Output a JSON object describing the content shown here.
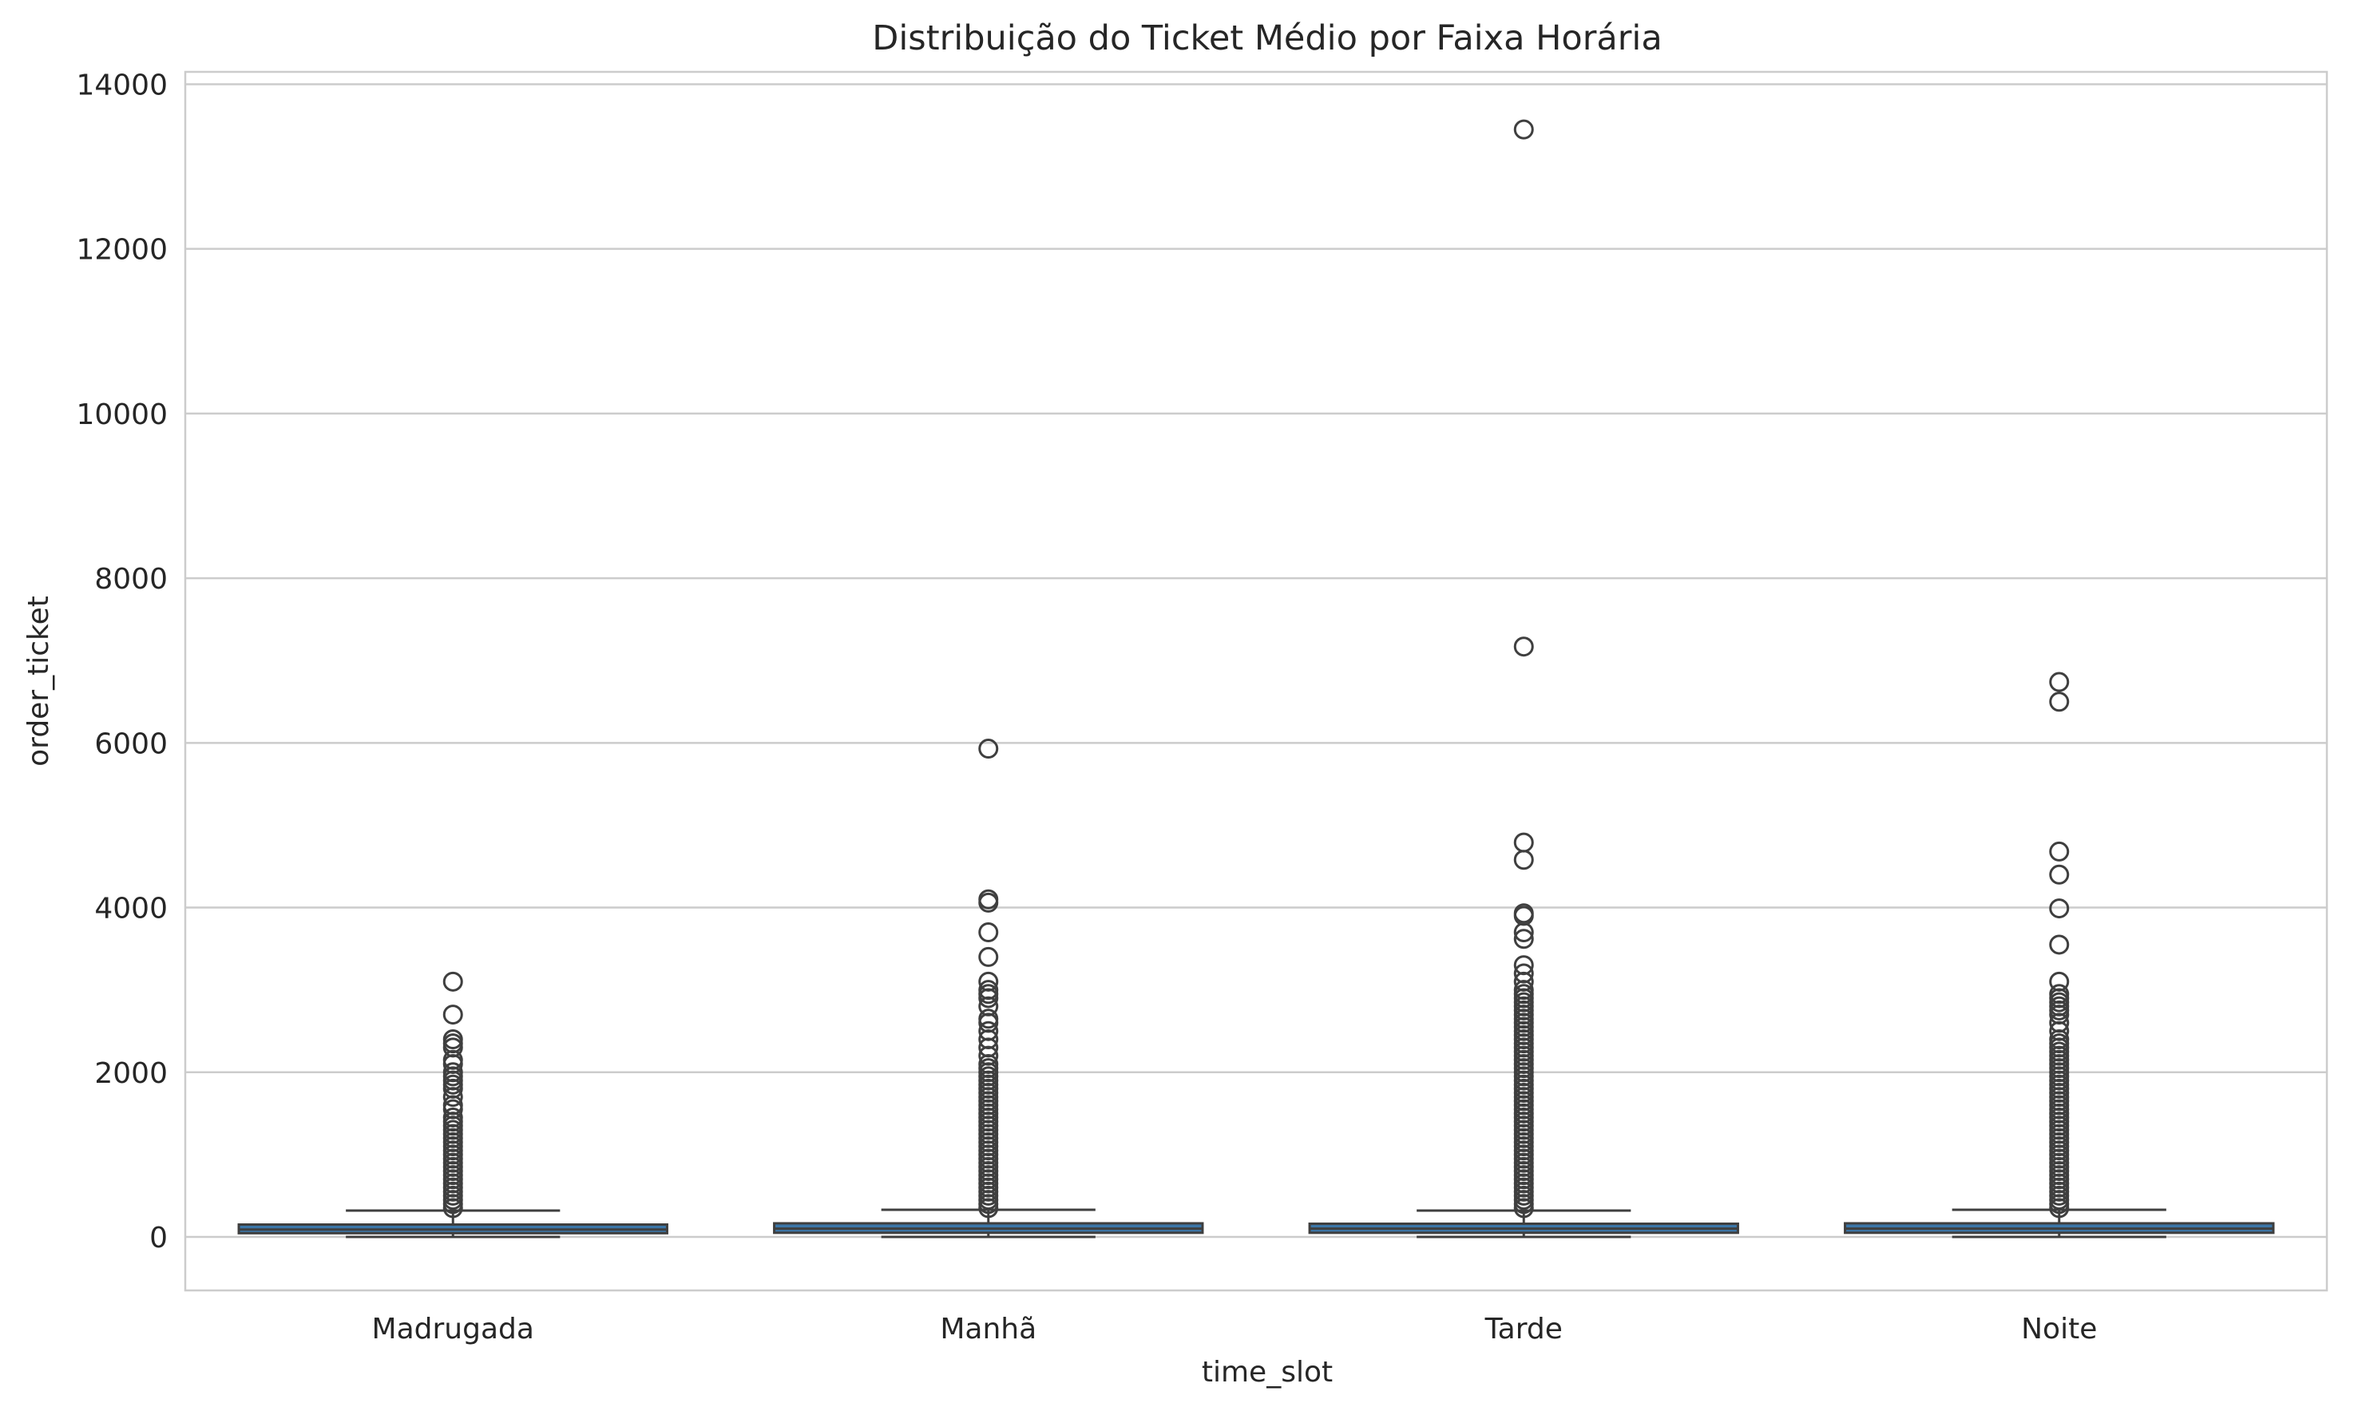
{
  "chart_data": {
    "type": "box",
    "title": "Distribuição do Ticket Médio por Faixa Horária",
    "xlabel": "time_slot",
    "ylabel": "order_ticket",
    "ylim": [
      -650,
      14150
    ],
    "yticks": [
      0,
      2000,
      4000,
      6000,
      8000,
      10000,
      12000,
      14000
    ],
    "ytick_labels": [
      "0",
      "2000",
      "4000",
      "6000",
      "8000",
      "10000",
      "12000",
      "14000"
    ],
    "grid": "horizontal",
    "colors": {
      "box_fill": "#3b76a8",
      "box_edge": "#3f3f3f",
      "median": "#3f3f3f",
      "outlier": "#3f3f3f",
      "grid": "#cccccc",
      "text": "#262626"
    },
    "categories": [
      "Madrugada",
      "Manhã",
      "Tarde",
      "Noite"
    ],
    "boxes": [
      {
        "category": "Madrugada",
        "whisker_low": 0,
        "q1": 45,
        "median": 90,
        "q3": 150,
        "whisker_high": 320,
        "outliers": [
          3100,
          2700,
          2400,
          2350,
          2300,
          2150,
          2100,
          2000,
          1950,
          1900,
          1850,
          1800,
          1700,
          1600,
          1550,
          1450,
          1400,
          1350,
          1300,
          1250,
          1200,
          1150,
          1100,
          1050,
          1000,
          950,
          900,
          850,
          800,
          750,
          700,
          650,
          600,
          550,
          500,
          450,
          400,
          350
        ]
      },
      {
        "category": "Manhã",
        "whisker_low": 0,
        "q1": 50,
        "median": 100,
        "q3": 165,
        "whisker_high": 330,
        "outliers": [
          5930,
          4100,
          4060,
          3700,
          3400,
          3100,
          3000,
          2950,
          2900,
          2800,
          2650,
          2600,
          2500,
          2400,
          2300,
          2200,
          2100,
          2050,
          2000,
          1950,
          1900,
          1850,
          1800,
          1750,
          1700,
          1650,
          1600,
          1550,
          1500,
          1450,
          1400,
          1350,
          1300,
          1250,
          1200,
          1150,
          1100,
          1050,
          1000,
          950,
          900,
          850,
          800,
          750,
          700,
          650,
          600,
          550,
          500,
          450,
          400,
          350
        ]
      },
      {
        "category": "Tarde",
        "whisker_low": 0,
        "q1": 50,
        "median": 100,
        "q3": 160,
        "whisker_high": 320,
        "outliers": [
          13450,
          7170,
          4790,
          4580,
          3930,
          3900,
          3700,
          3620,
          3300,
          3200,
          3100,
          3000,
          2950,
          2900,
          2850,
          2800,
          2750,
          2700,
          2650,
          2600,
          2550,
          2500,
          2450,
          2400,
          2350,
          2300,
          2250,
          2200,
          2150,
          2100,
          2050,
          2000,
          1950,
          1900,
          1850,
          1800,
          1750,
          1700,
          1650,
          1600,
          1550,
          1500,
          1450,
          1400,
          1350,
          1300,
          1250,
          1200,
          1150,
          1100,
          1050,
          1000,
          950,
          900,
          850,
          800,
          750,
          700,
          650,
          600,
          550,
          500,
          450,
          400,
          350
        ]
      },
      {
        "category": "Noite",
        "whisker_low": 0,
        "q1": 50,
        "median": 100,
        "q3": 165,
        "whisker_high": 330,
        "outliers": [
          6740,
          6500,
          4680,
          4400,
          3990,
          3550,
          3100,
          2950,
          2900,
          2850,
          2800,
          2750,
          2700,
          2600,
          2500,
          2400,
          2350,
          2300,
          2250,
          2200,
          2150,
          2100,
          2050,
          2000,
          1950,
          1900,
          1850,
          1800,
          1750,
          1700,
          1650,
          1600,
          1550,
          1500,
          1450,
          1400,
          1350,
          1300,
          1250,
          1200,
          1150,
          1100,
          1050,
          1000,
          950,
          900,
          850,
          800,
          750,
          700,
          650,
          600,
          550,
          500,
          450,
          400,
          350
        ]
      }
    ]
  }
}
